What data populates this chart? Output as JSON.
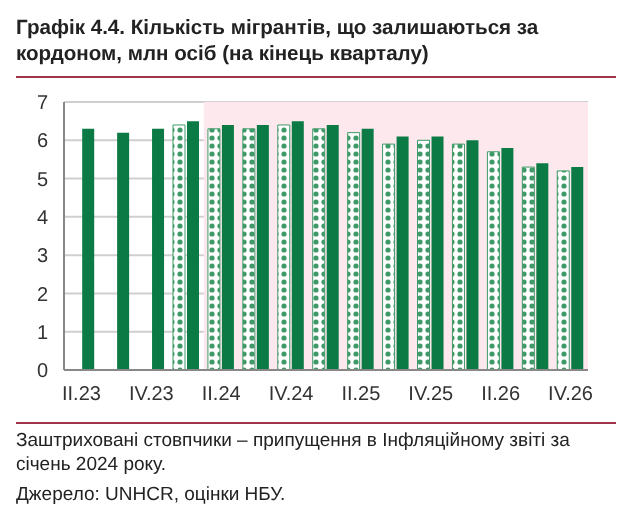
{
  "chart_data": {
    "type": "bar",
    "title": "Графік 4.4. Кількість мігрантів, що залишаються за кордоном, млн осіб (на кінець кварталу)",
    "categories": [
      "II.23",
      null,
      "IV.23",
      null,
      "II.24",
      null,
      "IV.24",
      null,
      "II.25",
      null,
      "IV.25",
      null,
      "II.26",
      null,
      "IV.26"
    ],
    "series": [
      {
        "color": "#3f9a68",
        "values": [
          null,
          null,
          null,
          6.4,
          6.3,
          6.3,
          6.4,
          6.3,
          6.2,
          5.9,
          6.0,
          5.9,
          5.7,
          5.3,
          5.2
        ]
      },
      {
        "color": "#0b7a45",
        "values": [
          6.3,
          6.2,
          6.3,
          6.5,
          6.4,
          6.4,
          6.5,
          6.4,
          6.3,
          6.1,
          6.1,
          6.0,
          5.8,
          5.4,
          5.3
        ]
      }
    ],
    "ylim": [
      0,
      7
    ],
    "yticks": [
      0,
      1,
      2,
      3,
      4,
      5,
      6,
      7
    ],
    "grid": "y",
    "bands": [
      {
        "axis": "x",
        "from": "II.24",
        "to": "IV.26",
        "color": "#fde8ee"
      }
    ],
    "annotations": [
      "Заштриховані стовпчики – припущення в Інфляційному звіті за січень 2024 року.",
      "Джерело: UNHCR, оцінки НБУ."
    ]
  }
}
